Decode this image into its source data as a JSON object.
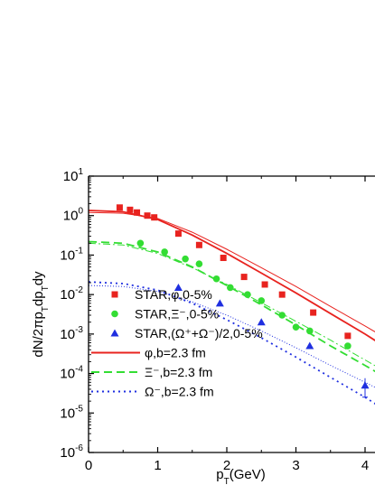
{
  "chart_data": {
    "type": "scatter",
    "xlabel": "p_T(GeV)",
    "ylabel": "dN/2πp_Tdp_Tdy",
    "xlim": [
      0,
      4.2
    ],
    "ylim": [
      1e-06,
      10
    ],
    "yscale": "log",
    "x_ticks": [
      "0",
      "1",
      "2",
      "3",
      "4"
    ],
    "y_ticks": [
      {
        "base": "10",
        "exp": "1"
      },
      {
        "base": "10",
        "exp": "0"
      },
      {
        "base": "10",
        "exp": "-1"
      },
      {
        "base": "10",
        "exp": "-2"
      },
      {
        "base": "10",
        "exp": "-3"
      },
      {
        "base": "10",
        "exp": "-4"
      },
      {
        "base": "10",
        "exp": "-5"
      },
      {
        "base": "10",
        "exp": "-6"
      }
    ],
    "legend_position": "bottom-left",
    "series": [
      {
        "name": "STAR,φ,0-5%",
        "kind": "marker",
        "marker": "square",
        "color": "#e8231f",
        "x": [
          0.45,
          0.6,
          0.7,
          0.85,
          0.95,
          1.3,
          1.6,
          1.95,
          2.25,
          2.55,
          2.8,
          3.25,
          3.75
        ],
        "y": [
          1.6,
          1.4,
          1.2,
          1.0,
          0.9,
          0.35,
          0.18,
          0.085,
          0.028,
          0.018,
          0.01,
          0.0035,
          0.0009
        ]
      },
      {
        "name": "STAR,Ξ⁻,0-5%",
        "kind": "marker",
        "marker": "circle",
        "color": "#33dd33",
        "x": [
          0.75,
          1.1,
          1.4,
          1.6,
          1.85,
          2.05,
          2.3,
          2.5,
          2.8,
          3.0,
          3.2,
          3.75
        ],
        "y": [
          0.2,
          0.12,
          0.08,
          0.06,
          0.025,
          0.015,
          0.01,
          0.007,
          0.003,
          0.0015,
          0.0012,
          0.0005
        ]
      },
      {
        "name": "STAR,(Ω⁺+Ω⁻)/2,0-5%",
        "kind": "marker",
        "marker": "triangle",
        "color": "#1f2fe0",
        "x": [
          1.3,
          1.9,
          2.5,
          3.2,
          4.0
        ],
        "y": [
          0.015,
          0.006,
          0.002,
          0.0005,
          5e-05
        ]
      },
      {
        "name": "φ,b=2.3 fm",
        "kind": "line",
        "dash": "solid",
        "color": "#e8231f",
        "x": [
          0,
          0.5,
          1.0,
          1.5,
          2.0,
          2.5,
          3.0,
          3.5,
          4.0,
          4.2
        ],
        "y": [
          1.35,
          1.25,
          0.8,
          0.32,
          0.11,
          0.035,
          0.011,
          0.0033,
          0.001,
          0.0006
        ]
      },
      {
        "name": "Ξ⁻,b=2.3 fm",
        "kind": "line",
        "dash": "dash",
        "color": "#33dd33",
        "x": [
          0,
          0.5,
          1.0,
          1.5,
          2.0,
          2.5,
          3.0,
          3.5,
          4.0,
          4.2
        ],
        "y": [
          0.22,
          0.2,
          0.12,
          0.05,
          0.017,
          0.0055,
          0.0017,
          0.0005,
          0.00016,
          0.0001
        ]
      },
      {
        "name": "Ω⁻,b=2.3 fm",
        "kind": "line",
        "dash": "dot",
        "color": "#1f2fe0",
        "x": [
          0,
          0.5,
          1.0,
          1.5,
          2.0,
          2.5,
          3.0,
          3.5,
          4.0,
          4.2
        ],
        "y": [
          0.021,
          0.019,
          0.013,
          0.006,
          0.0023,
          0.0008,
          0.00026,
          8e-05,
          2.5e-05,
          1.5e-05
        ]
      }
    ],
    "extra_lines": [
      {
        "color": "#e8231f",
        "dash": "solid",
        "x": [
          0,
          0.5,
          1.0,
          1.5,
          2.0,
          2.5,
          3.0,
          3.5,
          4.0,
          4.2
        ],
        "y": [
          1.2,
          1.15,
          0.85,
          0.38,
          0.14,
          0.048,
          0.016,
          0.005,
          0.0016,
          0.001
        ]
      },
      {
        "color": "#33dd33",
        "dash": "dashdot",
        "x": [
          0,
          0.5,
          1.0,
          1.5,
          2.0,
          2.5,
          3.0,
          3.5,
          4.0,
          4.2
        ],
        "y": [
          0.2,
          0.18,
          0.11,
          0.048,
          0.018,
          0.0062,
          0.0021,
          0.0007,
          0.00022,
          0.00014
        ]
      },
      {
        "color": "#1f2fe0",
        "dash": "fine",
        "x": [
          0,
          0.5,
          1.0,
          1.5,
          2.0,
          2.5,
          3.0,
          3.5,
          4.0,
          4.2
        ],
        "y": [
          0.017,
          0.016,
          0.012,
          0.0065,
          0.003,
          0.0012,
          0.00045,
          0.00016,
          6e-05,
          4e-05
        ]
      }
    ]
  }
}
